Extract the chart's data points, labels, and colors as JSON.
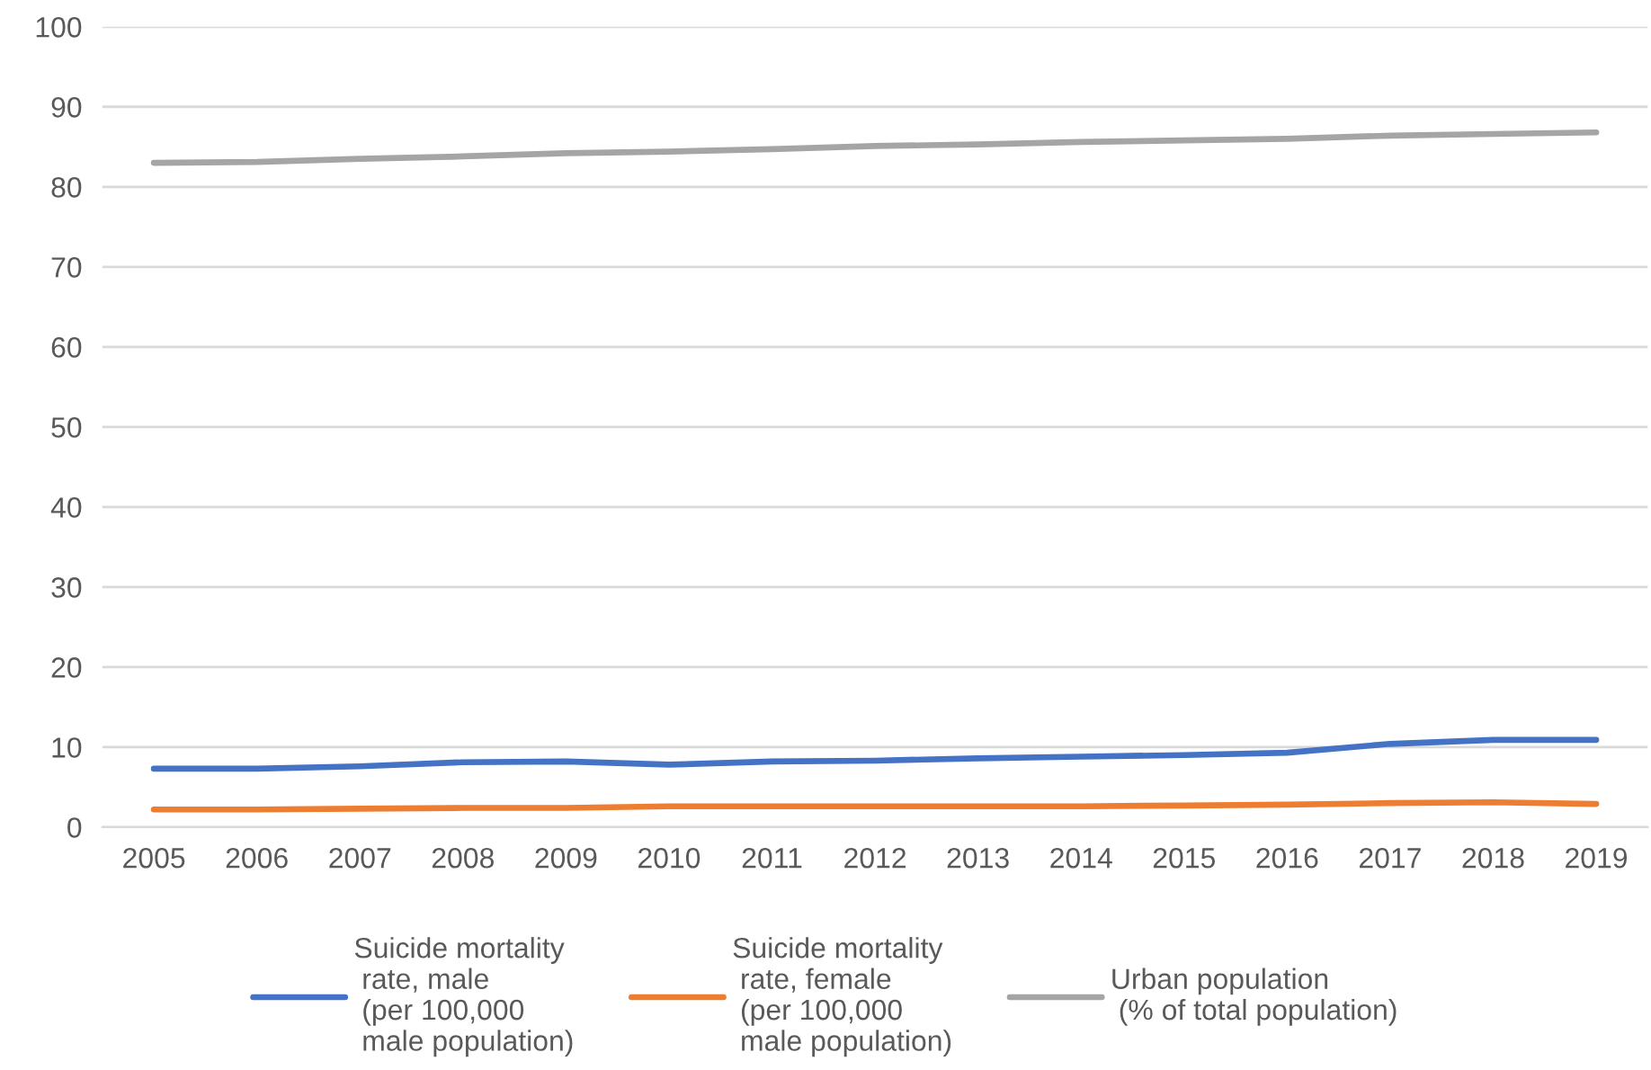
{
  "chart_data": {
    "type": "line",
    "categories": [
      "2005",
      "2006",
      "2007",
      "2008",
      "2009",
      "2010",
      "2011",
      "2012",
      "2013",
      "2014",
      "2015",
      "2016",
      "2017",
      "2018",
      "2019"
    ],
    "series": [
      {
        "name": "Suicide mortality\n rate, male\n (per 100,000\n male population)",
        "color": "#4472c4",
        "values": [
          7.3,
          7.3,
          7.6,
          8.1,
          8.2,
          7.8,
          8.2,
          8.3,
          8.6,
          8.8,
          9.0,
          9.3,
          10.4,
          10.9,
          10.9
        ]
      },
      {
        "name": "Suicide mortality\n rate, female\n (per 100,000\n male population)",
        "color": "#ed7d31",
        "values": [
          2.2,
          2.2,
          2.3,
          2.4,
          2.4,
          2.6,
          2.6,
          2.6,
          2.6,
          2.6,
          2.7,
          2.8,
          3.0,
          3.1,
          2.9
        ]
      },
      {
        "name": "Urban population\n (% of total population)",
        "color": "#a5a5a5",
        "values": [
          83.0,
          83.1,
          83.5,
          83.8,
          84.2,
          84.4,
          84.7,
          85.1,
          85.3,
          85.6,
          85.8,
          86.0,
          86.4,
          86.6,
          86.8
        ]
      }
    ],
    "ylim": [
      0,
      100
    ],
    "yticks": [
      0,
      10,
      20,
      30,
      40,
      50,
      60,
      70,
      80,
      90,
      100
    ],
    "grid": "y",
    "legend": "bottom",
    "marker": "none",
    "line_style": "solid"
  }
}
